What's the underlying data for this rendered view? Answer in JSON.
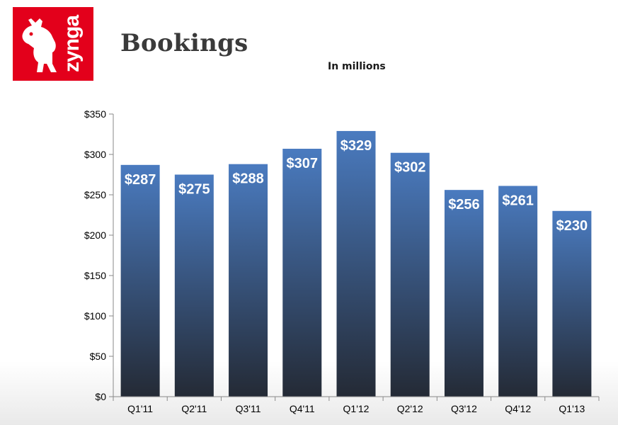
{
  "brand": {
    "name": "zynga",
    "registered_mark": "®",
    "color": "#e3001b",
    "icon": "zynga-dog-icon"
  },
  "header": {
    "title": "Bookings",
    "subtitle": "In millions"
  },
  "chart_data": {
    "type": "bar",
    "title": "Bookings",
    "subtitle": "In millions",
    "categories": [
      "Q1'11",
      "Q2'11",
      "Q3'11",
      "Q4'11",
      "Q1'12",
      "Q2'12",
      "Q3'12",
      "Q4'12",
      "Q1'13"
    ],
    "values": [
      287,
      275,
      288,
      307,
      329,
      302,
      256,
      261,
      230
    ],
    "value_labels": [
      "$287",
      "$275",
      "$288",
      "$307",
      "$329",
      "$302",
      "$256",
      "$261",
      "$230"
    ],
    "ylim": [
      0,
      350
    ],
    "yticks": [
      0,
      50,
      100,
      150,
      200,
      250,
      300,
      350
    ],
    "ytick_labels": [
      "$0",
      "$50",
      "$100",
      "$150",
      "$200",
      "$250",
      "$300",
      "$350"
    ],
    "xlabel": "",
    "ylabel": "",
    "grid": false,
    "bar_color_top": "#4a7bc0",
    "bar_color_bottom": "#242a35"
  }
}
